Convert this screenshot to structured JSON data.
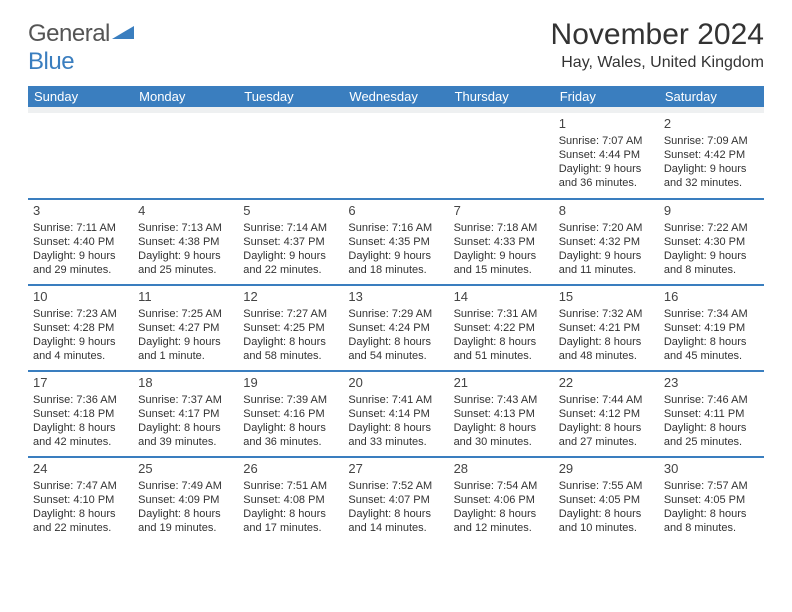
{
  "brand": {
    "name1": "General",
    "name2": "Blue"
  },
  "title": "November 2024",
  "location": "Hay, Wales, United Kingdom",
  "colors": {
    "accent": "#3a7ebf",
    "text": "#323232",
    "header_text": "#ffffff",
    "spacer": "#eef0f1"
  },
  "columns": [
    "Sunday",
    "Monday",
    "Tuesday",
    "Wednesday",
    "Thursday",
    "Friday",
    "Saturday"
  ],
  "weeks": [
    [
      null,
      null,
      null,
      null,
      null,
      {
        "n": "1",
        "sr": "7:07 AM",
        "ss": "4:44 PM",
        "dl": "9 hours and 36 minutes."
      },
      {
        "n": "2",
        "sr": "7:09 AM",
        "ss": "4:42 PM",
        "dl": "9 hours and 32 minutes."
      }
    ],
    [
      {
        "n": "3",
        "sr": "7:11 AM",
        "ss": "4:40 PM",
        "dl": "9 hours and 29 minutes."
      },
      {
        "n": "4",
        "sr": "7:13 AM",
        "ss": "4:38 PM",
        "dl": "9 hours and 25 minutes."
      },
      {
        "n": "5",
        "sr": "7:14 AM",
        "ss": "4:37 PM",
        "dl": "9 hours and 22 minutes."
      },
      {
        "n": "6",
        "sr": "7:16 AM",
        "ss": "4:35 PM",
        "dl": "9 hours and 18 minutes."
      },
      {
        "n": "7",
        "sr": "7:18 AM",
        "ss": "4:33 PM",
        "dl": "9 hours and 15 minutes."
      },
      {
        "n": "8",
        "sr": "7:20 AM",
        "ss": "4:32 PM",
        "dl": "9 hours and 11 minutes."
      },
      {
        "n": "9",
        "sr": "7:22 AM",
        "ss": "4:30 PM",
        "dl": "9 hours and 8 minutes."
      }
    ],
    [
      {
        "n": "10",
        "sr": "7:23 AM",
        "ss": "4:28 PM",
        "dl": "9 hours and 4 minutes."
      },
      {
        "n": "11",
        "sr": "7:25 AM",
        "ss": "4:27 PM",
        "dl": "9 hours and 1 minute."
      },
      {
        "n": "12",
        "sr": "7:27 AM",
        "ss": "4:25 PM",
        "dl": "8 hours and 58 minutes."
      },
      {
        "n": "13",
        "sr": "7:29 AM",
        "ss": "4:24 PM",
        "dl": "8 hours and 54 minutes."
      },
      {
        "n": "14",
        "sr": "7:31 AM",
        "ss": "4:22 PM",
        "dl": "8 hours and 51 minutes."
      },
      {
        "n": "15",
        "sr": "7:32 AM",
        "ss": "4:21 PM",
        "dl": "8 hours and 48 minutes."
      },
      {
        "n": "16",
        "sr": "7:34 AM",
        "ss": "4:19 PM",
        "dl": "8 hours and 45 minutes."
      }
    ],
    [
      {
        "n": "17",
        "sr": "7:36 AM",
        "ss": "4:18 PM",
        "dl": "8 hours and 42 minutes."
      },
      {
        "n": "18",
        "sr": "7:37 AM",
        "ss": "4:17 PM",
        "dl": "8 hours and 39 minutes."
      },
      {
        "n": "19",
        "sr": "7:39 AM",
        "ss": "4:16 PM",
        "dl": "8 hours and 36 minutes."
      },
      {
        "n": "20",
        "sr": "7:41 AM",
        "ss": "4:14 PM",
        "dl": "8 hours and 33 minutes."
      },
      {
        "n": "21",
        "sr": "7:43 AM",
        "ss": "4:13 PM",
        "dl": "8 hours and 30 minutes."
      },
      {
        "n": "22",
        "sr": "7:44 AM",
        "ss": "4:12 PM",
        "dl": "8 hours and 27 minutes."
      },
      {
        "n": "23",
        "sr": "7:46 AM",
        "ss": "4:11 PM",
        "dl": "8 hours and 25 minutes."
      }
    ],
    [
      {
        "n": "24",
        "sr": "7:47 AM",
        "ss": "4:10 PM",
        "dl": "8 hours and 22 minutes."
      },
      {
        "n": "25",
        "sr": "7:49 AM",
        "ss": "4:09 PM",
        "dl": "8 hours and 19 minutes."
      },
      {
        "n": "26",
        "sr": "7:51 AM",
        "ss": "4:08 PM",
        "dl": "8 hours and 17 minutes."
      },
      {
        "n": "27",
        "sr": "7:52 AM",
        "ss": "4:07 PM",
        "dl": "8 hours and 14 minutes."
      },
      {
        "n": "28",
        "sr": "7:54 AM",
        "ss": "4:06 PM",
        "dl": "8 hours and 12 minutes."
      },
      {
        "n": "29",
        "sr": "7:55 AM",
        "ss": "4:05 PM",
        "dl": "8 hours and 10 minutes."
      },
      {
        "n": "30",
        "sr": "7:57 AM",
        "ss": "4:05 PM",
        "dl": "8 hours and 8 minutes."
      }
    ]
  ],
  "labels": {
    "sunrise": "Sunrise: ",
    "sunset": "Sunset: ",
    "daylight": "Daylight: "
  }
}
